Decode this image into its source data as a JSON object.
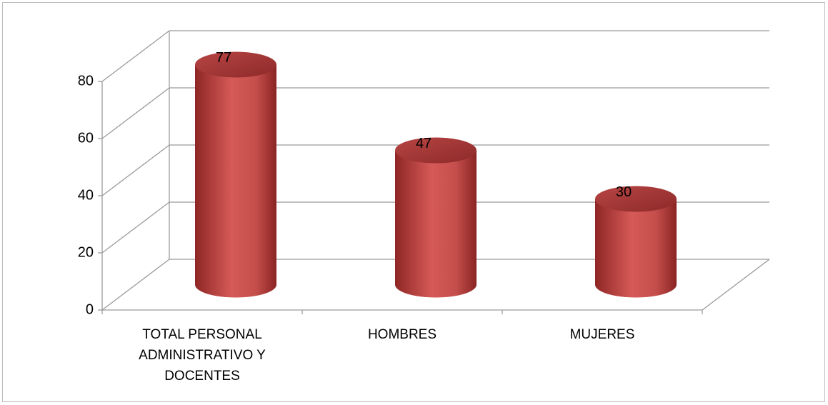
{
  "chart_data": {
    "type": "bar3d",
    "categories": [
      "TOTAL PERSONAL ADMINISTRATIVO Y DOCENTES",
      "HOMBRES",
      "MUJERES"
    ],
    "values": [
      77,
      47,
      30
    ],
    "color": "#c0504d",
    "ylim": [
      0,
      80
    ],
    "yticks": [
      0,
      20,
      40,
      60,
      80
    ],
    "grid": true
  }
}
